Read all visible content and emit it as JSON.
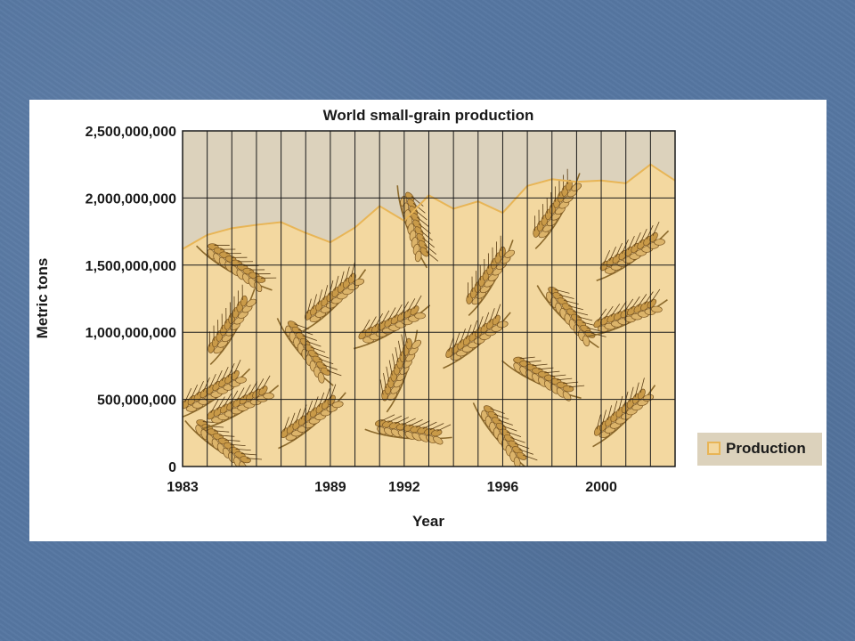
{
  "chart_data": {
    "type": "area",
    "title": "World small-grain production",
    "xlabel": "Year",
    "ylabel": "Metric tons",
    "x": [
      1983,
      1984,
      1985,
      1986,
      1987,
      1988,
      1989,
      1990,
      1991,
      1992,
      1993,
      1994,
      1995,
      1996,
      1997,
      1998,
      1999,
      2000,
      2001,
      2002,
      2003
    ],
    "series": [
      {
        "name": "Production",
        "values": [
          1620000000,
          1725000000,
          1775000000,
          1800000000,
          1820000000,
          1740000000,
          1670000000,
          1780000000,
          1940000000,
          1830000000,
          2020000000,
          1920000000,
          1975000000,
          1890000000,
          2090000000,
          2140000000,
          2120000000,
          2130000000,
          2110000000,
          2250000000,
          2130000000
        ]
      }
    ],
    "x_tick_labels": [
      "1983",
      "1989",
      "1992",
      "1996",
      "2000"
    ],
    "x_tick_years": [
      1983,
      1989,
      1992,
      1996,
      2000
    ],
    "y_ticks": [
      0,
      500000000,
      1000000000,
      1500000000,
      2000000000,
      2500000000
    ],
    "y_tick_labels": [
      "0",
      "500,000,000",
      "1,000,000,000",
      "1,500,000,000",
      "2,000,000,000",
      "2,500,000,000"
    ],
    "ylim": [
      0,
      2500000000
    ],
    "grid": true,
    "legend_position": "right",
    "colors": {
      "fill": "#f3d8a0",
      "line": "#e8b556",
      "above_area": "#dcd2bc",
      "grid": "#1a1a1a",
      "legend_bg": "#dcd2bc",
      "slide_bg": "#5677a2",
      "wheat": "#c99a48"
    }
  }
}
